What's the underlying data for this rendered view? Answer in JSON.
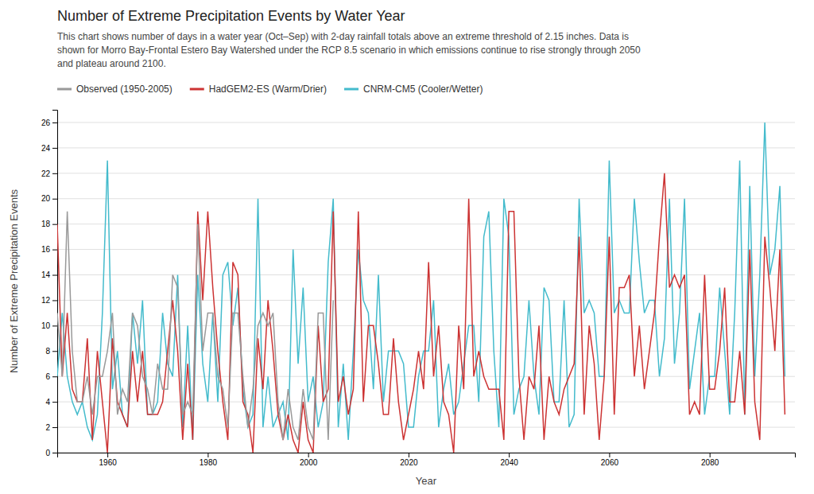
{
  "chart_data": {
    "type": "line",
    "title": "Number of Extreme Precipitation Events by Water Year",
    "subtitle": "This chart shows number of days in a water year (Oct–Sep) with 2-day rainfall totals above an extreme threshold of 2.15 inches. Data is\nshown for Morro Bay-Frontal Estero Bay Watershed under the RCP 8.5 scenario in which emissions continue to rise strongly through 2050\nand plateau around 2100.",
    "xlabel": "Year",
    "ylabel": "Number of Extreme Precipitation Events",
    "x": [
      1950,
      1951,
      1952,
      1953,
      1954,
      1955,
      1956,
      1957,
      1958,
      1959,
      1960,
      1961,
      1962,
      1963,
      1964,
      1965,
      1966,
      1967,
      1968,
      1969,
      1970,
      1971,
      1972,
      1973,
      1974,
      1975,
      1976,
      1977,
      1978,
      1979,
      1980,
      1981,
      1982,
      1983,
      1984,
      1985,
      1986,
      1987,
      1988,
      1989,
      1990,
      1991,
      1992,
      1993,
      1994,
      1995,
      1996,
      1997,
      1998,
      1999,
      2000,
      2001,
      2002,
      2003,
      2004,
      2005,
      2006,
      2007,
      2008,
      2009,
      2010,
      2011,
      2012,
      2013,
      2014,
      2015,
      2016,
      2017,
      2018,
      2019,
      2020,
      2021,
      2022,
      2023,
      2024,
      2025,
      2026,
      2027,
      2028,
      2029,
      2030,
      2031,
      2032,
      2033,
      2034,
      2035,
      2036,
      2037,
      2038,
      2039,
      2040,
      2041,
      2042,
      2043,
      2044,
      2045,
      2046,
      2047,
      2048,
      2049,
      2050,
      2051,
      2052,
      2053,
      2054,
      2055,
      2056,
      2057,
      2058,
      2059,
      2060,
      2061,
      2062,
      2063,
      2064,
      2065,
      2066,
      2067,
      2068,
      2069,
      2070,
      2071,
      2072,
      2073,
      2074,
      2075,
      2076,
      2077,
      2078,
      2079,
      2080,
      2081,
      2082,
      2083,
      2084,
      2085,
      2086,
      2087,
      2088,
      2089,
      2090,
      2091,
      2092,
      2093,
      2094,
      2095
    ],
    "series": [
      {
        "name": "Observed (1950-2005)",
        "color": "#999999",
        "values": [
          11,
          6,
          19,
          8,
          4,
          4,
          6,
          3,
          6,
          6,
          8,
          11,
          3,
          5,
          4,
          11,
          10,
          6,
          5,
          3,
          7,
          5,
          5,
          14,
          13,
          3,
          4,
          3,
          18,
          8,
          11,
          11,
          6,
          5,
          2,
          11,
          11,
          6,
          2,
          5,
          10,
          11,
          10,
          11,
          4,
          1,
          5,
          2,
          1,
          5,
          2,
          1,
          11,
          11,
          1,
          12,
          null,
          null,
          null,
          null,
          null,
          null,
          null,
          null,
          null,
          null,
          null,
          null,
          null,
          null,
          null,
          null,
          null,
          null,
          null,
          null,
          null,
          null,
          null,
          null,
          null,
          null,
          null,
          null,
          null,
          null,
          null,
          null,
          null,
          null,
          null,
          null,
          null,
          null,
          null,
          null,
          null,
          null,
          null,
          null,
          null,
          null,
          null,
          null,
          null,
          null,
          null,
          null,
          null,
          null,
          null,
          null,
          null,
          null,
          null,
          null,
          null,
          null,
          null,
          null,
          null,
          null,
          null,
          null,
          null,
          null,
          null,
          null,
          null,
          null,
          null,
          null,
          null,
          null,
          null,
          null,
          null,
          null,
          null,
          null,
          null,
          null,
          null,
          null,
          null,
          null
        ]
      },
      {
        "name": "HadGEM2-ES (Warm/Drier)",
        "color": "#cc3333",
        "values": [
          18,
          6,
          11,
          5,
          4,
          4,
          9,
          1,
          8,
          4,
          0,
          9,
          4,
          3,
          2,
          8,
          4,
          8,
          3,
          3,
          3,
          4,
          8,
          12,
          8,
          1,
          7,
          1,
          19,
          12,
          19,
          13,
          8,
          4,
          1,
          15,
          14,
          4,
          3,
          0,
          9,
          5,
          12,
          8,
          3,
          1,
          3,
          1,
          0,
          4,
          1,
          0,
          10,
          4,
          5,
          19,
          4,
          6,
          3,
          5,
          19,
          4,
          10,
          10,
          7,
          3,
          3,
          9,
          4,
          1,
          3,
          5,
          8,
          5,
          15,
          6,
          10,
          4,
          3,
          0,
          10,
          5,
          20,
          6,
          8,
          6,
          5,
          5,
          5,
          1,
          19,
          19,
          6,
          1,
          6,
          5,
          10,
          1,
          6,
          4,
          3,
          5,
          6,
          7,
          17,
          3,
          10,
          7,
          1,
          6,
          17,
          3,
          13,
          13,
          14,
          6,
          10,
          5,
          8,
          11,
          17,
          22,
          13,
          14,
          13,
          14,
          3,
          4,
          3,
          14,
          5,
          5,
          8,
          13,
          4,
          4,
          8,
          3,
          16,
          4,
          1,
          17,
          13,
          8,
          16,
          3
        ]
      },
      {
        "name": "CNRM-CM5 (Cooler/Wetter)",
        "color": "#44bbcc",
        "values": [
          6,
          11,
          6,
          4,
          3,
          4,
          2,
          1,
          3,
          11,
          23,
          5,
          8,
          3,
          2,
          11,
          7,
          12,
          3,
          3,
          4,
          11,
          7,
          6,
          14,
          2,
          10,
          1,
          14,
          7,
          4,
          11,
          4,
          14,
          15,
          10,
          13,
          5,
          2,
          3,
          20,
          2,
          6,
          2,
          3,
          4,
          1,
          16,
          7,
          13,
          4,
          6,
          2,
          4,
          15,
          20,
          2,
          7,
          1,
          8,
          16,
          12,
          11,
          5,
          14,
          4,
          8,
          8,
          8,
          7,
          2,
          2,
          6,
          8,
          8,
          12,
          2,
          5,
          7,
          3,
          4,
          7,
          10,
          10,
          4,
          17,
          19,
          8,
          2,
          20,
          17,
          3,
          5,
          6,
          12,
          6,
          3,
          13,
          12,
          4,
          4,
          12,
          2,
          3,
          20,
          11,
          12,
          11,
          6,
          6,
          23,
          11,
          12,
          11,
          11,
          20,
          15,
          11,
          12,
          12,
          6,
          9,
          20,
          7,
          11,
          20,
          5,
          8,
          11,
          3,
          6,
          6,
          13,
          8,
          3,
          11,
          23,
          3,
          21,
          6,
          14,
          26,
          14,
          16,
          21,
          6
        ]
      }
    ],
    "xlim": [
      1950,
      2097
    ],
    "xticks": [
      1960,
      1980,
      2000,
      2020,
      2040,
      2060,
      2080
    ],
    "ylim": [
      0,
      27
    ],
    "yticks": [
      0,
      2,
      4,
      6,
      8,
      10,
      12,
      14,
      16,
      18,
      20,
      22,
      24,
      26
    ],
    "grid": true,
    "legend": "upper left"
  }
}
